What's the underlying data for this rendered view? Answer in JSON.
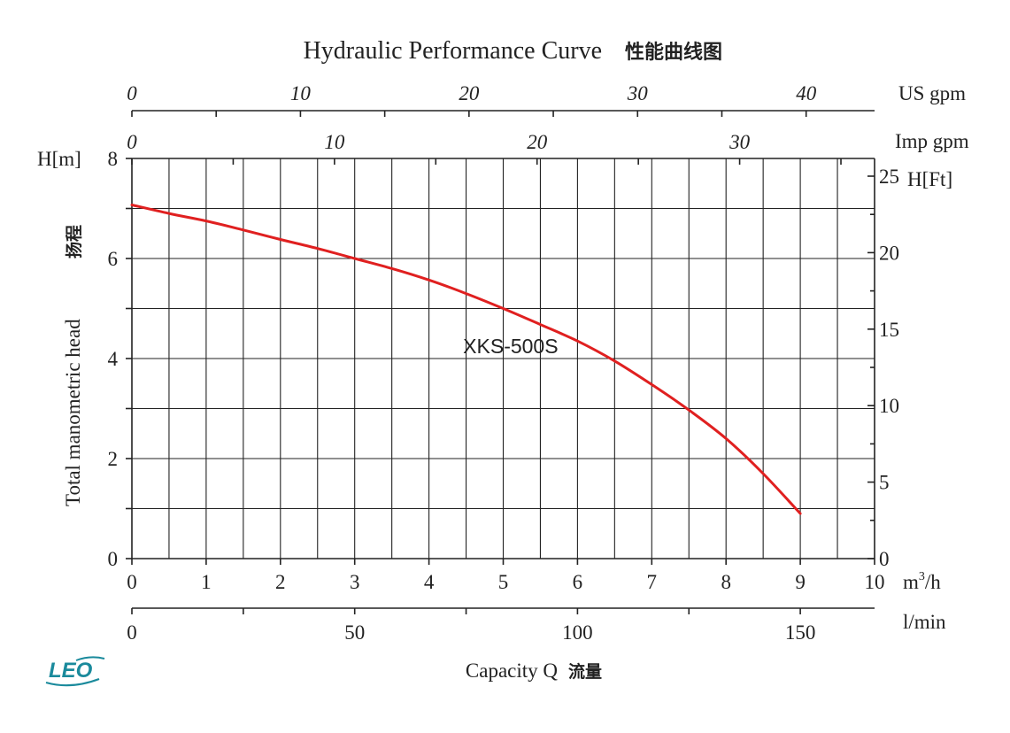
{
  "chart_data": {
    "type": "line",
    "title": "Hydraulic Performance Curve",
    "title_cn": "性能曲线图",
    "xlabel": "Capacity Q",
    "xlabel_cn": "流量",
    "ylabel": "Total manometric head",
    "ylabel_cn": "扬程",
    "x_primary": {
      "unit": "m³/h",
      "unit_base": "m",
      "unit_sup": "3",
      "unit_tail": "/h",
      "range": [
        0,
        10
      ],
      "ticks": [
        "0",
        "1",
        "2",
        "3",
        "4",
        "5",
        "6",
        "7",
        "8",
        "9",
        "10"
      ]
    },
    "x_lmin": {
      "unit": "l/min",
      "ticks": [
        {
          "v": 0,
          "label": "0"
        },
        {
          "v": 50,
          "label": "50"
        },
        {
          "v": 100,
          "label": "100"
        },
        {
          "v": 150,
          "label": "150"
        }
      ]
    },
    "x_usgpm": {
      "unit": "US gpm",
      "ticks": [
        {
          "v": 0,
          "label": "0"
        },
        {
          "v": 10,
          "label": "10"
        },
        {
          "v": 20,
          "label": "20"
        },
        {
          "v": 30,
          "label": "30"
        },
        {
          "v": 40,
          "label": "40"
        }
      ]
    },
    "x_impgpm": {
      "unit": "Imp gpm",
      "ticks": [
        {
          "v": 0,
          "label": "0"
        },
        {
          "v": 10,
          "label": "10"
        },
        {
          "v": 20,
          "label": "20"
        },
        {
          "v": 30,
          "label": "30"
        }
      ]
    },
    "y_left": {
      "unit": "H[m]",
      "range": [
        0,
        8
      ],
      "ticks": [
        {
          "v": 0,
          "label": "0"
        },
        {
          "v": 2,
          "label": "2"
        },
        {
          "v": 4,
          "label": "4"
        },
        {
          "v": 6,
          "label": "6"
        },
        {
          "v": 8,
          "label": "8"
        }
      ]
    },
    "y_right": {
      "unit": "H[Ft]",
      "ticks": [
        {
          "v": 0,
          "label": "0"
        },
        {
          "v": 5,
          "label": "5"
        },
        {
          "v": 10,
          "label": "10"
        },
        {
          "v": 15,
          "label": "15"
        },
        {
          "v": 20,
          "label": "20"
        },
        {
          "v": 25,
          "label": "25"
        }
      ]
    },
    "series": [
      {
        "name": "XKS-500S",
        "color": "#e02020",
        "x": [
          0,
          0.5,
          1,
          1.5,
          2,
          2.5,
          3,
          3.5,
          4,
          4.5,
          5,
          5.5,
          6,
          6.5,
          7,
          7.5,
          8,
          8.5,
          9
        ],
        "y": [
          7.07,
          6.9,
          6.75,
          6.57,
          6.38,
          6.2,
          6.0,
          5.8,
          5.57,
          5.3,
          5.0,
          4.68,
          4.35,
          3.95,
          3.48,
          2.97,
          2.4,
          1.7,
          0.9
        ]
      }
    ],
    "grid": true
  },
  "brand": {
    "logo_text": "LEO",
    "color": "#1a8a9c"
  }
}
